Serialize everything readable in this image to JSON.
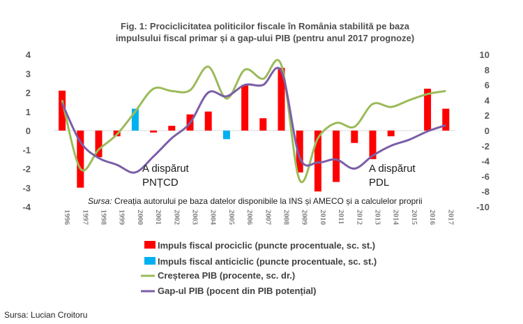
{
  "chart_data": {
    "type": "bar",
    "title_line1": "Fig. 1: Prociclicitatea politicilor fiscale în România stabilită pe baza",
    "title_line2": "impulsului fiscal primar și a gap-ului PIB (pentru anul 2017 prognoze)",
    "categories": [
      "1996",
      "1997",
      "1998",
      "1999",
      "2000",
      "2001",
      "2002",
      "2003",
      "2004",
      "2005",
      "2006",
      "2007",
      "2008",
      "2009",
      "2010",
      "2011",
      "2012",
      "2013",
      "2014",
      "2015",
      "2016",
      "2017"
    ],
    "y_left": {
      "min": -4,
      "max": 4,
      "ticks": [
        4,
        3,
        2,
        1,
        0,
        -1,
        -2,
        -3,
        -4
      ]
    },
    "y_right": {
      "min": -10,
      "max": 10,
      "ticks": [
        10,
        8,
        6,
        4,
        2,
        0,
        -2,
        -4,
        -6,
        -8,
        -10
      ]
    },
    "series": [
      {
        "name": "Impuls fiscal prociclic (puncte procentuale, sc. st.)",
        "kind": "bar",
        "axis": "left",
        "color": "#ff0000",
        "values": [
          2.1,
          -3.0,
          -1.4,
          -0.3,
          null,
          -0.1,
          0.25,
          0.85,
          1.0,
          null,
          2.4,
          0.65,
          3.3,
          -2.2,
          -3.2,
          -2.7,
          -0.65,
          -1.5,
          -0.3,
          null,
          2.2,
          1.15
        ]
      },
      {
        "name": "Impuls fiscal anticiclic (puncte procentuale, sc. st.)",
        "kind": "bar",
        "axis": "left",
        "color": "#00b0f0",
        "values": [
          null,
          null,
          null,
          null,
          1.15,
          null,
          null,
          null,
          null,
          -0.45,
          null,
          null,
          null,
          null,
          null,
          null,
          null,
          null,
          null,
          null,
          null,
          null
        ]
      },
      {
        "name": "Creșterea PIB (procente, sc. dr.)",
        "kind": "line",
        "axis": "right",
        "color": "#9bbb59",
        "values": [
          4.0,
          -5.0,
          -2.5,
          -0.5,
          2.5,
          5.5,
          5.2,
          5.3,
          8.4,
          4.2,
          8.0,
          6.8,
          8.6,
          -6.5,
          -1.0,
          1.0,
          0.5,
          3.5,
          3.1,
          4.0,
          4.8,
          5.2
        ]
      },
      {
        "name": "Gap-ul PIB (pocent din PIB potențial)",
        "kind": "line",
        "axis": "right",
        "color": "#7b5ea7",
        "values": [
          3.6,
          -1.5,
          -3.6,
          -4.5,
          -5.5,
          -3.4,
          -1.0,
          1.0,
          5.0,
          4.5,
          6.0,
          6.0,
          7.8,
          -3.5,
          -4.2,
          -3.8,
          -5.0,
          -3.3,
          -2.0,
          -1.2,
          -0.1,
          0.7
        ]
      }
    ],
    "annotations": [
      "A dispărut",
      "PNȚCD",
      "A dispărut",
      "PDL"
    ],
    "source_note_label": "Sursa:",
    "source_note_text": " Creația autorului pe baza datelor disponibile la INS și AMECO și a calculelor proprii"
  },
  "credit": "Sursa: Lucian Croitoru"
}
